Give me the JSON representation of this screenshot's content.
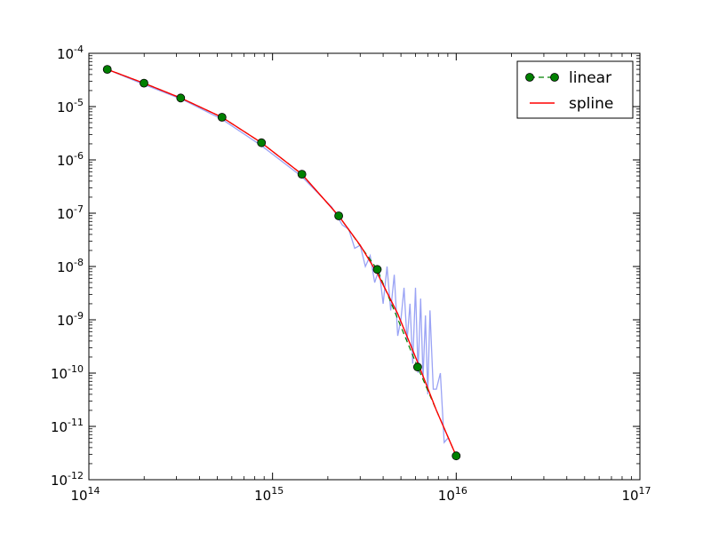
{
  "chart_data": {
    "type": "line",
    "title": "",
    "xlabel": "",
    "ylabel": "",
    "xscale": "log",
    "yscale": "log",
    "xlim": [
      100000000000000.0,
      1e+17
    ],
    "ylim": [
      1e-12,
      0.0001
    ],
    "x_ticks": [
      {
        "base": "10",
        "exp": "14",
        "value": 100000000000000.0
      },
      {
        "base": "10",
        "exp": "15",
        "value": 1000000000000000.0
      },
      {
        "base": "10",
        "exp": "16",
        "value": 1e+16
      },
      {
        "base": "10",
        "exp": "17",
        "value": 1e+17
      }
    ],
    "y_ticks": [
      {
        "base": "10",
        "exp": "-4",
        "value": 0.0001
      },
      {
        "base": "10",
        "exp": "-5",
        "value": 1e-05
      },
      {
        "base": "10",
        "exp": "-6",
        "value": 1e-06
      },
      {
        "base": "10",
        "exp": "-7",
        "value": 1e-07
      },
      {
        "base": "10",
        "exp": "-8",
        "value": 1e-08
      },
      {
        "base": "10",
        "exp": "-9",
        "value": 1e-09
      },
      {
        "base": "10",
        "exp": "-10",
        "value": 1e-10
      },
      {
        "base": "10",
        "exp": "-11",
        "value": 1e-11
      },
      {
        "base": "10",
        "exp": "-12",
        "value": 1e-12
      }
    ],
    "legend": {
      "position": "top-right",
      "entries": [
        "linear",
        "spline"
      ]
    },
    "series": [
      {
        "name": "linear",
        "style": "dashed line with circle markers",
        "color": "#008000",
        "marker_color": "#008000",
        "x": [
          125900000000000.0,
          199500000000000.0,
          316200000000000.0,
          530900000000000.0,
          870300000000000.0,
          1445000000000000.0,
          2291000000000000.0,
          3715000000000000.0,
          6166000000000000.0,
          1e+16
        ],
        "y": [
          5e-05,
          2.75e-05,
          1.45e-05,
          6.3e-06,
          2.1e-06,
          5.4e-07,
          8.9e-08,
          8.8e-09,
          1.3e-10,
          2.8e-12
        ]
      },
      {
        "name": "spline",
        "style": "solid line",
        "color": "#ff0000",
        "x": [
          125900000000000.0,
          199500000000000.0,
          316200000000000.0,
          530900000000000.0,
          870300000000000.0,
          1445000000000000.0,
          2291000000000000.0,
          3000000000000000.0,
          3715000000000000.0,
          4800000000000000.0,
          6166000000000000.0,
          7800000000000000.0,
          1e+16
        ],
        "y": [
          5e-05,
          2.75e-05,
          1.45e-05,
          6.3e-06,
          2.1e-06,
          5.4e-07,
          8.9e-08,
          2.5e-08,
          7.5e-09,
          1.3e-09,
          1.6e-10,
          2e-11,
          2.8e-12
        ]
      },
      {
        "name": "data (noisy)",
        "style": "thin light-blue line",
        "color": "#9aa3f5",
        "in_legend": false,
        "x": [
          125900000000000.0,
          200000000000000.0,
          320000000000000.0,
          530000000000000.0,
          870000000000000.0,
          1440000000000000.0,
          2100000000000000.0,
          2400000000000000.0,
          2600000000000000.0,
          2800000000000000.0,
          3000000000000000.0,
          3200000000000000.0,
          3400000000000000.0,
          3600000000000000.0,
          3800000000000000.0,
          4000000000000000.0,
          4200000000000000.0,
          4400000000000000.0,
          4600000000000000.0,
          4800000000000000.0,
          5000000000000000.0,
          5200000000000000.0,
          5400000000000000.0,
          5600000000000000.0,
          5800000000000000.0,
          6000000000000000.0,
          6200000000000000.0,
          6400000000000000.0,
          6600000000000000.0,
          6800000000000000.0,
          7000000000000000.0,
          7200000000000000.0,
          7500000000000000.0,
          7800000000000000.0,
          8200000000000000.0,
          8600000000000000.0,
          9000000000000000.0
        ],
        "y": [
          5e-05,
          2.6e-05,
          1.38e-05,
          5.8e-06,
          1.85e-06,
          4.9e-07,
          1.3e-07,
          6e-08,
          5e-08,
          2.2e-08,
          2.5e-08,
          1e-08,
          1.6e-08,
          5e-09,
          9e-09,
          2e-09,
          1e-08,
          1.5e-09,
          7e-09,
          5e-10,
          1e-09,
          4e-09,
          4e-10,
          2e-09,
          1.5e-10,
          4e-09,
          1e-10,
          2.5e-09,
          8e-11,
          1.2e-09,
          4e-11,
          1.5e-09,
          5e-11,
          5e-11,
          1e-10,
          5e-12,
          6e-12
        ]
      }
    ]
  }
}
